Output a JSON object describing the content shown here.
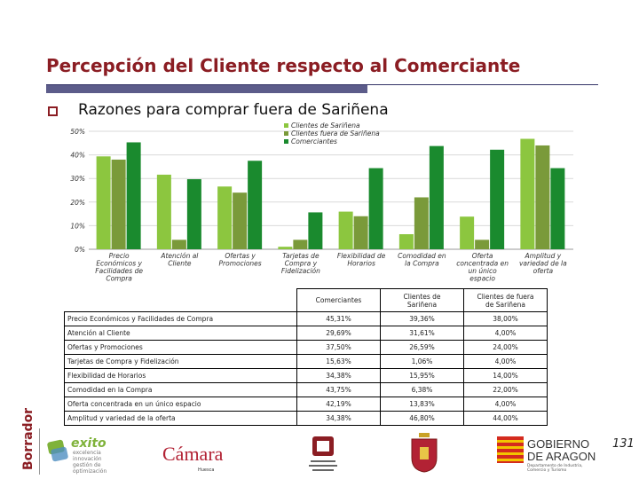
{
  "header": {
    "title": "Percepción del Cliente respecto al Comerciante",
    "subtitle": "Razones para comprar fuera de Sariñena"
  },
  "colors": {
    "title": "#8b1d23",
    "clientes_sarinena": "#8cc63f",
    "clientes_fuera": "#7a9a3a",
    "comerciantes": "#1a8a2e"
  },
  "chart_data": {
    "type": "bar",
    "categories": [
      "Precio Económicos y Facilidades de Compra",
      "Atención al Cliente",
      "Ofertas y Promociones",
      "Tarjetas de Compra y Fidelización",
      "Flexibilidad de Horarios",
      "Comodidad en la Compra",
      "Oferta concentrada en un único espacio",
      "Amplitud y variedad de la oferta"
    ],
    "tick_labels": [
      [
        "Precio",
        "Económicos y",
        "Facilidades de",
        "Compra"
      ],
      [
        "Atención al",
        "Cliente"
      ],
      [
        "Ofertas y",
        "Promociones"
      ],
      [
        "Tarjetas de",
        "Compra y",
        "Fidelización"
      ],
      [
        "Flexibilidad de",
        "Horarios"
      ],
      [
        "Comodidad en",
        "la Compra"
      ],
      [
        "Oferta",
        "concentrada en",
        "un único",
        "espacio"
      ],
      [
        "Amplitud y",
        "variedad de la",
        "oferta"
      ]
    ],
    "series": [
      {
        "name": "Clientes de Sariñena",
        "values": [
          39.36,
          31.61,
          26.59,
          1.06,
          15.95,
          6.38,
          13.83,
          46.8
        ]
      },
      {
        "name": "Clientes fuera de Sariñena",
        "values": [
          38.0,
          4.0,
          24.0,
          4.0,
          14.0,
          22.0,
          4.0,
          44.0
        ]
      },
      {
        "name": "Comerciantes",
        "values": [
          45.31,
          29.69,
          37.5,
          15.63,
          34.38,
          43.75,
          42.19,
          34.38
        ]
      }
    ],
    "ylim": [
      0,
      50
    ],
    "yticks": [
      "0%",
      "10%",
      "20%",
      "30%",
      "40%",
      "50%"
    ],
    "grid": true,
    "legend": "top-right"
  },
  "table": {
    "headers": [
      "Comerciantes",
      "Clientes de Sariñena",
      "Clientes de fuera de Sariñena"
    ],
    "header_lines": [
      [
        "Comerciantes"
      ],
      [
        "Clientes de",
        "Sariñena"
      ],
      [
        "Clientes de fuera",
        "de Sariñena"
      ]
    ],
    "rows": [
      {
        "label": "Precio Económicos y Facilidades de Compra",
        "values": [
          "45,31%",
          "39,36%",
          "38,00%"
        ]
      },
      {
        "label": "Atención al Cliente",
        "values": [
          "29,69%",
          "31,61%",
          "4,00%"
        ]
      },
      {
        "label": "Ofertas y Promociones",
        "values": [
          "37,50%",
          "26,59%",
          "24,00%"
        ]
      },
      {
        "label": "Tarjetas de Compra y Fidelización",
        "values": [
          "15,63%",
          "1,06%",
          "4,00%"
        ]
      },
      {
        "label": "Flexibilidad de Horarios",
        "values": [
          "34,38%",
          "15,95%",
          "14,00%"
        ]
      },
      {
        "label": "Comodidad en la Compra",
        "values": [
          "43,75%",
          "6,38%",
          "22,00%"
        ]
      },
      {
        "label": "Oferta concentrada en un único espacio",
        "values": [
          "42,19%",
          "13,83%",
          "4,00%"
        ]
      },
      {
        "label": "Amplitud y variedad de la oferta",
        "values": [
          "34,38%",
          "46,80%",
          "44,00%"
        ]
      }
    ]
  },
  "footer": {
    "page_number": "131",
    "draft_label": "Borrador",
    "logos": {
      "exito_name": "exito",
      "exito_tagline": [
        "excelencia",
        "innovación",
        "gestión de",
        "optimización"
      ],
      "camara_name": "Cámara",
      "camara_sub": "Huesca",
      "gobierno_name": [
        "GOBIERNO",
        "DE ARAGON"
      ],
      "gobierno_dept": [
        "Departamento de Industria,",
        "Comercio y Turismo"
      ]
    }
  }
}
